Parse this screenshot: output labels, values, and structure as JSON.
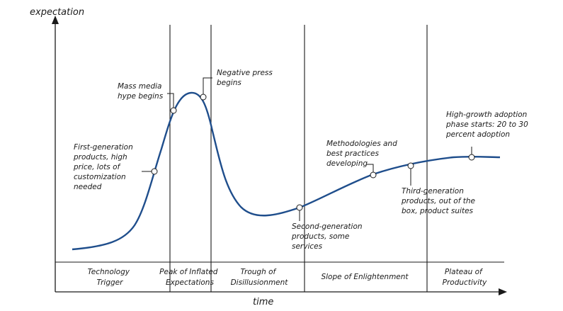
{
  "axes": {
    "y_label": "expectation",
    "x_label": "time"
  },
  "curve": {
    "color": "#1f4e8c",
    "description_points": []
  },
  "annotations": [
    {
      "id": "first-gen",
      "lines": [
        "First-generation",
        "products, high",
        "price, lots of",
        "customization",
        "needed"
      ]
    },
    {
      "id": "mass-media",
      "lines": [
        "Mass media",
        "hype begins"
      ]
    },
    {
      "id": "negative-press",
      "lines": [
        "Negative press",
        "begins"
      ]
    },
    {
      "id": "second-gen",
      "lines": [
        "Second-generation",
        "products, some",
        "services"
      ]
    },
    {
      "id": "methodologies",
      "lines": [
        "Methodologies and",
        "best practices",
        "developing"
      ]
    },
    {
      "id": "third-gen",
      "lines": [
        "Third-generation",
        "products, out of the",
        "box, product suites"
      ]
    },
    {
      "id": "high-growth",
      "lines": [
        "High-growth adoption",
        "phase starts: 20 to 30",
        "percent adoption"
      ]
    }
  ],
  "phases": [
    {
      "id": "technology-trigger",
      "lines": [
        "Technology",
        "Trigger"
      ]
    },
    {
      "id": "peak",
      "lines": [
        "Peak of Inflated",
        "Expectations"
      ]
    },
    {
      "id": "trough",
      "lines": [
        "Trough of",
        "Disillusionment"
      ]
    },
    {
      "id": "slope",
      "lines": [
        "Slope of Enlightenment"
      ]
    },
    {
      "id": "plateau",
      "lines": [
        "Plateau of",
        "Productivity"
      ]
    }
  ]
}
